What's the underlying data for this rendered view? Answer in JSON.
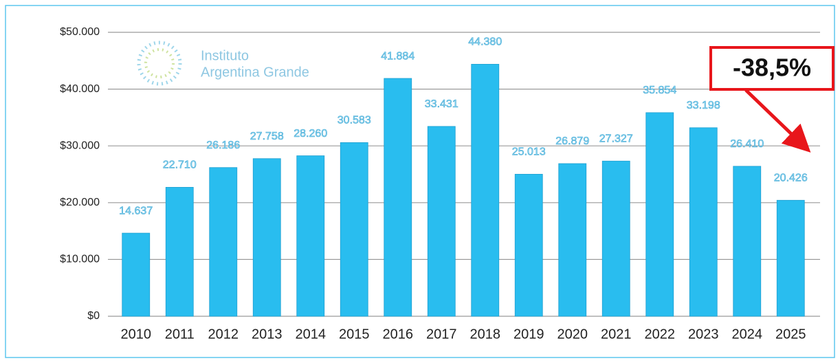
{
  "chart_data": {
    "type": "bar",
    "logo": [
      "Instituto",
      "Argentina Grande"
    ],
    "annotation": "-38,5%",
    "categories": [
      "2010",
      "2011",
      "2012",
      "2013",
      "2014",
      "2015",
      "2016",
      "2017",
      "2018",
      "2019",
      "2020",
      "2021",
      "2022",
      "2023",
      "2024",
      "2025"
    ],
    "values": [
      14637,
      22710,
      26186,
      27758,
      28260,
      30583,
      41884,
      33431,
      44380,
      25013,
      26879,
      27327,
      35854,
      33198,
      26410,
      20426
    ],
    "value_labels": [
      "14.637",
      "22.710",
      "26.186",
      "27.758",
      "28.260",
      "30.583",
      "41.884",
      "33.431",
      "44.380",
      "25.013",
      "26.879",
      "27.327",
      "35.854",
      "33.198",
      "26.410",
      "20.426"
    ],
    "color": "#29bdef",
    "ylim": [
      0,
      50000
    ],
    "yticks": [
      {
        "value": 0,
        "label": "$0"
      },
      {
        "value": 10000,
        "label": "$10.000"
      },
      {
        "value": 20000,
        "label": "$20.000"
      },
      {
        "value": 30000,
        "label": "$30.000"
      },
      {
        "value": 40000,
        "label": "$40.000"
      },
      {
        "value": 50000,
        "label": "$50.000"
      }
    ],
    "grid": true
  }
}
